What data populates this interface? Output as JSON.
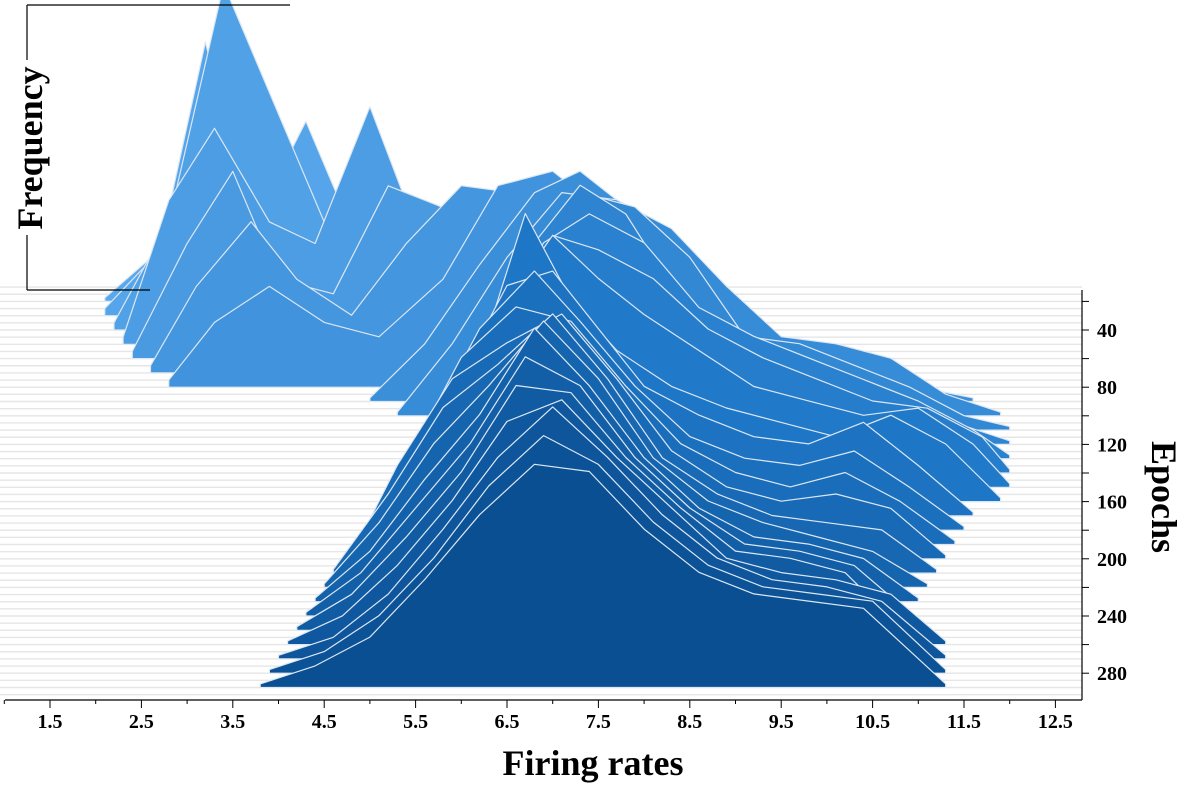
{
  "chart_data": {
    "type": "ridgeline",
    "title": "",
    "xlabel": "Firing rates",
    "ylabel": "Epochs",
    "zlabel": "Frequency",
    "x_ticks": [
      "1.5",
      "2.5",
      "3.5",
      "4.5",
      "5.5",
      "6.5",
      "7.5",
      "8.5",
      "9.5",
      "10.5",
      "11.5",
      "12.5"
    ],
    "y_ticks": [
      "40",
      "80",
      "120",
      "160",
      "200",
      "240",
      "280"
    ],
    "xlim": [
      1,
      13
    ],
    "ylim": [
      0,
      295
    ],
    "colors": {
      "early": "#5aa8ec",
      "mid": "#1f78c8",
      "late": "#0b4f93",
      "outline": "#dbe7f3"
    },
    "ridges": [
      {
        "epoch": 20,
        "x": [
          2.1,
          2.6,
          3.2,
          3.6,
          4.2,
          4.8,
          5.3,
          5.8,
          6.3,
          6.8
        ],
        "y": [
          0.05,
          0.6,
          1.2,
          3.5,
          1.0,
          0.8,
          0.4,
          0.2,
          0.1,
          0.05
        ]
      },
      {
        "epoch": 30,
        "x": [
          2.1,
          2.7,
          3.2,
          3.7,
          4.3,
          4.9,
          5.6,
          6.1,
          6.6
        ],
        "y": [
          0.1,
          0.9,
          3.8,
          1.2,
          2.7,
          0.9,
          0.4,
          0.2,
          0.1
        ]
      },
      {
        "epoch": 40,
        "x": [
          2.2,
          2.8,
          3.4,
          4.0,
          4.5,
          4.9,
          5.4,
          5.9,
          6.5
        ],
        "y": [
          0.1,
          1.5,
          4.8,
          3.0,
          1.5,
          2.1,
          0.6,
          0.4,
          0.1
        ]
      },
      {
        "epoch": 50,
        "x": [
          2.3,
          2.8,
          3.3,
          3.9,
          4.4,
          5.0,
          5.6,
          6.2,
          6.9,
          7.5
        ],
        "y": [
          0.1,
          2.0,
          3.0,
          1.7,
          1.4,
          3.3,
          1.3,
          0.7,
          0.3,
          0.1
        ]
      },
      {
        "epoch": 60,
        "x": [
          2.4,
          3.0,
          3.5,
          4.0,
          4.6,
          5.2,
          5.8,
          6.5,
          7.1,
          7.8
        ],
        "y": [
          0.1,
          1.6,
          2.6,
          1.1,
          0.9,
          2.4,
          2.1,
          1.3,
          0.6,
          0.1
        ]
      },
      {
        "epoch": 70,
        "x": [
          2.6,
          3.1,
          3.7,
          4.2,
          4.8,
          5.4,
          6.0,
          6.6,
          7.2,
          7.9,
          8.5
        ],
        "y": [
          0.1,
          1.2,
          2.1,
          1.3,
          0.8,
          1.8,
          2.6,
          2.5,
          1.7,
          0.6,
          0.1
        ]
      },
      {
        "epoch": 80,
        "x": [
          2.8,
          3.3,
          3.9,
          4.5,
          5.1,
          5.8,
          6.4,
          7.0,
          7.6,
          8.3,
          9.0
        ],
        "y": [
          0.1,
          0.9,
          1.4,
          0.9,
          0.7,
          1.5,
          2.8,
          3.0,
          2.4,
          1.0,
          0.1
        ]
      },
      {
        "epoch": 90,
        "x": [
          5.0,
          5.6,
          6.2,
          6.8,
          7.3,
          7.8,
          8.4,
          9.0,
          9.6,
          10.3,
          11.0,
          11.6
        ],
        "y": [
          0.05,
          0.8,
          1.9,
          2.9,
          3.2,
          2.7,
          2.2,
          1.0,
          0.6,
          0.4,
          0.2,
          0.05
        ]
      },
      {
        "epoch": 100,
        "x": [
          5.3,
          5.9,
          6.5,
          7.1,
          7.7,
          8.3,
          8.9,
          9.5,
          10.1,
          10.7,
          11.3,
          11.9
        ],
        "y": [
          0.05,
          1.0,
          2.2,
          3.1,
          3.0,
          2.6,
          1.8,
          1.1,
          1.0,
          0.8,
          0.3,
          0.05
        ]
      },
      {
        "epoch": 110,
        "x": [
          5.6,
          6.2,
          6.8,
          7.3,
          7.9,
          8.5,
          9.1,
          9.7,
          10.3,
          10.9,
          11.5,
          12.0
        ],
        "y": [
          0.05,
          1.3,
          2.5,
          3.3,
          3.1,
          2.4,
          1.3,
          1.2,
          0.9,
          0.6,
          0.2,
          0.05
        ]
      },
      {
        "epoch": 120,
        "x": [
          5.8,
          6.3,
          6.8,
          7.3,
          7.8,
          8.4,
          9.0,
          9.6,
          10.2,
          10.8,
          11.4,
          12.0
        ],
        "y": [
          0.05,
          1.5,
          2.8,
          3.6,
          3.2,
          2.0,
          1.5,
          1.3,
          1.0,
          0.7,
          0.3,
          0.05
        ]
      },
      {
        "epoch": 130,
        "x": [
          5.9,
          6.4,
          6.9,
          7.4,
          8.0,
          8.6,
          9.2,
          9.8,
          10.4,
          11.0,
          11.6,
          12.0
        ],
        "y": [
          0.05,
          1.8,
          3.0,
          3.4,
          3.0,
          2.1,
          1.7,
          1.4,
          1.1,
          0.8,
          0.4,
          0.05
        ]
      },
      {
        "epoch": 140,
        "x": [
          6.0,
          6.5,
          7.0,
          7.5,
          8.1,
          8.7,
          9.3,
          9.9,
          10.5,
          11.1,
          11.7,
          12.0
        ],
        "y": [
          0.05,
          2.0,
          3.3,
          3.1,
          2.7,
          2.0,
          1.6,
          1.3,
          1.0,
          0.9,
          0.5,
          0.05
        ]
      },
      {
        "epoch": 150,
        "x": [
          6.0,
          6.5,
          7.0,
          7.5,
          8.0,
          8.6,
          9.2,
          9.8,
          10.4,
          11.0,
          11.6,
          12.0
        ],
        "y": [
          0.05,
          2.6,
          3.5,
          2.9,
          2.4,
          1.9,
          1.4,
          1.2,
          1.0,
          1.1,
          0.6,
          0.05
        ]
      },
      {
        "epoch": 160,
        "x": [
          5.8,
          6.3,
          6.7,
          7.2,
          7.7,
          8.3,
          8.9,
          9.5,
          10.1,
          10.7,
          11.3,
          11.9
        ],
        "y": [
          0.05,
          2.4,
          4.0,
          2.8,
          2.1,
          1.6,
          1.3,
          1.1,
          0.9,
          1.2,
          0.8,
          0.05
        ]
      },
      {
        "epoch": 170,
        "x": [
          5.5,
          6.0,
          6.5,
          7.0,
          7.5,
          8.0,
          8.6,
          9.2,
          9.8,
          10.4,
          11.0,
          11.6
        ],
        "y": [
          0.05,
          2.0,
          3.2,
          3.4,
          2.6,
          1.8,
          1.4,
          1.1,
          1.0,
          1.3,
          0.7,
          0.05
        ]
      },
      {
        "epoch": 180,
        "x": [
          5.2,
          5.7,
          6.2,
          6.8,
          7.3,
          7.9,
          8.5,
          9.1,
          9.7,
          10.3,
          10.9,
          11.5
        ],
        "y": [
          0.05,
          1.6,
          2.8,
          3.6,
          2.9,
          2.0,
          1.3,
          1.0,
          0.9,
          1.1,
          0.6,
          0.05
        ]
      },
      {
        "epoch": 190,
        "x": [
          5.0,
          5.5,
          6.0,
          6.6,
          7.2,
          7.8,
          8.4,
          9.0,
          9.6,
          10.2,
          10.8,
          11.4
        ],
        "y": [
          0.05,
          1.4,
          2.6,
          3.3,
          3.1,
          2.2,
          1.4,
          1.0,
          0.8,
          1.0,
          0.6,
          0.05
        ]
      },
      {
        "epoch": 200,
        "x": [
          4.8,
          5.3,
          5.9,
          6.5,
          7.1,
          7.7,
          8.3,
          8.9,
          9.5,
          10.1,
          10.7,
          11.3
        ],
        "y": [
          0.05,
          1.3,
          2.5,
          3.0,
          3.4,
          2.5,
          1.5,
          1.0,
          0.8,
          0.9,
          0.7,
          0.05
        ]
      },
      {
        "epoch": 210,
        "x": [
          4.6,
          5.2,
          5.8,
          6.4,
          7.0,
          7.6,
          8.2,
          8.8,
          9.4,
          10.0,
          10.6,
          11.2
        ],
        "y": [
          0.05,
          1.1,
          2.3,
          2.9,
          3.6,
          2.7,
          1.6,
          1.1,
          0.8,
          0.7,
          0.6,
          0.05
        ]
      },
      {
        "epoch": 220,
        "x": [
          4.5,
          5.1,
          5.7,
          6.3,
          6.9,
          7.5,
          8.1,
          8.7,
          9.3,
          9.9,
          10.5,
          11.1
        ],
        "y": [
          0.05,
          0.9,
          2.0,
          2.8,
          3.7,
          2.9,
          1.8,
          1.2,
          0.9,
          0.7,
          0.5,
          0.05
        ]
      },
      {
        "epoch": 230,
        "x": [
          4.4,
          5.0,
          5.6,
          6.2,
          6.8,
          7.4,
          8.0,
          8.6,
          9.2,
          9.8,
          10.4,
          11.0
        ],
        "y": [
          0.05,
          0.7,
          1.7,
          2.6,
          3.8,
          3.0,
          2.0,
          1.3,
          0.9,
          0.8,
          0.6,
          0.05
        ]
      },
      {
        "epoch": 240,
        "x": [
          4.3,
          4.9,
          5.5,
          6.1,
          6.7,
          7.3,
          7.9,
          8.5,
          9.1,
          9.7,
          10.3,
          10.9
        ],
        "y": [
          0.05,
          0.6,
          1.5,
          2.4,
          3.6,
          3.2,
          2.2,
          1.5,
          1.0,
          0.9,
          0.7,
          0.05
        ]
      },
      {
        "epoch": 250,
        "x": [
          4.2,
          4.8,
          5.4,
          6.0,
          6.6,
          7.2,
          7.8,
          8.4,
          9.0,
          9.6,
          10.2,
          10.8
        ],
        "y": [
          0.05,
          0.5,
          1.3,
          2.2,
          3.4,
          3.3,
          2.4,
          1.7,
          1.1,
          1.0,
          0.8,
          0.05
        ]
      },
      {
        "epoch": 260,
        "x": [
          4.1,
          4.7,
          5.3,
          5.9,
          6.5,
          7.1,
          7.7,
          8.3,
          8.9,
          9.5,
          10.1,
          10.7,
          11.3
        ],
        "y": [
          0.05,
          0.4,
          1.1,
          2.0,
          3.1,
          3.4,
          2.6,
          1.9,
          1.2,
          1.0,
          0.9,
          0.7,
          0.05
        ]
      },
      {
        "epoch": 270,
        "x": [
          4.0,
          4.6,
          5.2,
          5.8,
          6.4,
          7.0,
          7.6,
          8.2,
          8.8,
          9.4,
          10.0,
          10.6,
          11.3
        ],
        "y": [
          0.05,
          0.3,
          0.9,
          1.8,
          2.8,
          3.5,
          2.8,
          2.0,
          1.4,
          1.1,
          1.0,
          0.8,
          0.05
        ]
      },
      {
        "epoch": 280,
        "x": [
          3.9,
          4.5,
          5.1,
          5.7,
          6.3,
          6.9,
          7.5,
          8.1,
          8.7,
          9.3,
          9.9,
          10.5,
          11.3
        ],
        "y": [
          0.05,
          0.3,
          0.8,
          1.6,
          2.6,
          3.3,
          2.9,
          2.1,
          1.5,
          1.2,
          1.1,
          1.0,
          0.05
        ]
      },
      {
        "epoch": 290,
        "x": [
          3.8,
          4.4,
          5.0,
          5.6,
          6.2,
          6.8,
          7.4,
          8.0,
          8.6,
          9.2,
          9.8,
          10.4,
          11.3
        ],
        "y": [
          0.05,
          0.3,
          0.7,
          1.5,
          2.4,
          3.1,
          3.0,
          2.2,
          1.6,
          1.3,
          1.2,
          1.1,
          0.05
        ]
      }
    ]
  }
}
